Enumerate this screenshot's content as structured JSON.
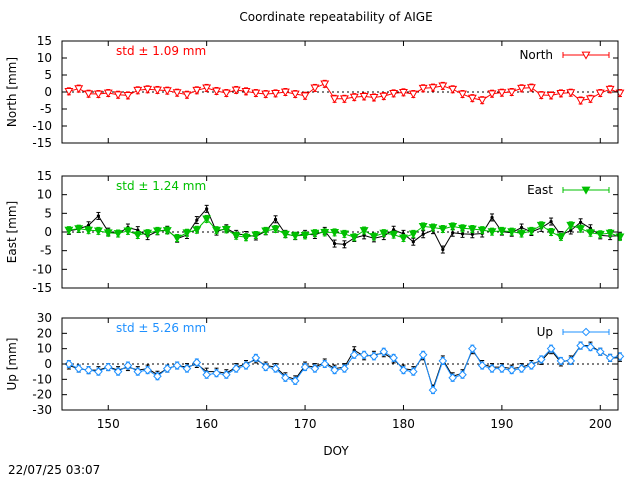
{
  "figure": {
    "title": "Coordinate repeatability of AIGE",
    "xlabel": "DOY",
    "timestamp": "22/07/25 03:07",
    "xlim": [
      145.3,
      201.8
    ],
    "xticks": [
      "150",
      "160",
      "170",
      "180",
      "190",
      "200"
    ]
  },
  "chart_data": [
    {
      "type": "line",
      "panel": "north",
      "ylabel": "North [mm]",
      "ylim": [
        -15,
        15
      ],
      "yticks": [
        "15",
        "10",
        "5",
        "0",
        "-5",
        "-10",
        "-15"
      ],
      "std_label": "std ± 1.09 mm",
      "color": "#ff0000",
      "legend": {
        "label": "North",
        "position": "top-right",
        "marker": "open-triangle-down"
      },
      "grid": false,
      "zero_line": true,
      "series": [
        {
          "marker": "open-triangle-down",
          "color": "#ff0000",
          "x": [
            146,
            147,
            148,
            149,
            150,
            151,
            152,
            153,
            154,
            155,
            156,
            157,
            158,
            159,
            160,
            161,
            162,
            163,
            164,
            165,
            166,
            167,
            168,
            169,
            170,
            171,
            172,
            173,
            174,
            175,
            176,
            177,
            178,
            179,
            180,
            181,
            182,
            183,
            184,
            185,
            186,
            187,
            188,
            189,
            190,
            191,
            192,
            193,
            194,
            195,
            196,
            197,
            198,
            199,
            200,
            201,
            202
          ],
          "y": [
            0.2,
            1.0,
            -0.5,
            -0.6,
            -0.3,
            -0.8,
            -1.0,
            0.5,
            0.8,
            0.6,
            0.4,
            -0.2,
            -0.8,
            0.5,
            1.2,
            0.3,
            -0.3,
            0.6,
            0.2,
            -0.3,
            -0.6,
            -0.4,
            0.0,
            -0.6,
            -1.1,
            1.2,
            2.4,
            -2.0,
            -2.0,
            -1.5,
            -1.3,
            -1.6,
            -1.2,
            -0.4,
            -0.1,
            -0.6,
            1.1,
            1.3,
            1.8,
            0.8,
            -0.6,
            -1.8,
            -2.4,
            -0.5,
            -0.2,
            0.0,
            1.1,
            1.3,
            -0.9,
            -1.0,
            -0.4,
            -0.2,
            -2.5,
            -2.0,
            -0.3,
            0.8,
            -0.3
          ]
        }
      ]
    },
    {
      "type": "line",
      "panel": "east",
      "ylabel": "East [mm]",
      "ylim": [
        -15,
        15
      ],
      "yticks": [
        "15",
        "10",
        "5",
        "0",
        "-5",
        "-10",
        "-15"
      ],
      "std_label": "std ± 1.24 mm",
      "color": "#00c000",
      "legend": {
        "label": "East",
        "position": "top-right",
        "marker": "filled-triangle-down"
      },
      "grid": false,
      "zero_line": true,
      "series": [
        {
          "marker": "dot",
          "color": "#000000",
          "x": [
            146,
            147,
            148,
            149,
            150,
            151,
            152,
            153,
            154,
            155,
            156,
            157,
            158,
            159,
            160,
            161,
            162,
            163,
            164,
            165,
            166,
            167,
            168,
            169,
            170,
            171,
            172,
            173,
            174,
            175,
            176,
            177,
            178,
            179,
            180,
            181,
            182,
            183,
            184,
            185,
            186,
            187,
            188,
            189,
            190,
            191,
            192,
            193,
            194,
            195,
            196,
            197,
            198,
            199,
            200,
            201,
            202
          ],
          "y": [
            0.3,
            0.8,
            1.8,
            4.3,
            0.1,
            -0.4,
            1.2,
            0.5,
            -1.1,
            0.2,
            0.6,
            -1.8,
            -0.8,
            3.2,
            6.2,
            0.1,
            1.0,
            -0.5,
            -0.8,
            -1.2,
            0.2,
            3.4,
            -0.5,
            -1.1,
            -0.5,
            -0.8,
            0.3,
            -3.1,
            -3.3,
            -1.6,
            -0.9,
            -1.7,
            -1.1,
            0.6,
            -0.5,
            -2.6,
            -0.6,
            0.5,
            -4.7,
            -0.2,
            -0.5,
            -0.6,
            -0.4,
            3.9,
            0.1,
            -0.2,
            1.2,
            0.0,
            1.1,
            2.8,
            -0.8,
            0.4,
            2.6,
            1.0,
            -0.9,
            -1.1,
            -1.0
          ]
        },
        {
          "marker": "filled-triangle-down",
          "color": "#00c000",
          "x": [
            146,
            147,
            148,
            149,
            150,
            151,
            152,
            153,
            154,
            155,
            156,
            157,
            158,
            159,
            160,
            161,
            162,
            163,
            164,
            165,
            166,
            167,
            168,
            169,
            170,
            171,
            172,
            173,
            174,
            175,
            176,
            177,
            178,
            179,
            180,
            181,
            182,
            183,
            184,
            185,
            186,
            187,
            188,
            189,
            190,
            191,
            192,
            193,
            194,
            195,
            196,
            197,
            198,
            199,
            200,
            201,
            202
          ],
          "y": [
            0.5,
            0.9,
            0.5,
            0.3,
            -0.2,
            -0.4,
            0.3,
            -0.8,
            -0.3,
            0.3,
            0.4,
            -1.6,
            -0.2,
            0.6,
            3.5,
            0.5,
            0.7,
            -1.0,
            -1.4,
            -0.8,
            0.3,
            0.8,
            -0.6,
            -1.0,
            -0.9,
            -0.3,
            -0.1,
            -0.1,
            -0.5,
            -1.4,
            0.4,
            -1.2,
            -0.3,
            -0.7,
            -1.6,
            -0.5,
            1.5,
            1.2,
            0.8,
            1.5,
            1.0,
            0.8,
            0.5,
            0.1,
            0.3,
            0.1,
            -0.4,
            0.3,
            1.8,
            0.0,
            -1.3,
            1.8,
            0.9,
            -0.2,
            -0.6,
            -0.3,
            -1.3
          ]
        }
      ]
    },
    {
      "type": "line",
      "panel": "up",
      "ylabel": "Up [mm]",
      "ylim": [
        -30,
        30
      ],
      "yticks": [
        "30",
        "20",
        "10",
        "0",
        "-10",
        "-20",
        "-30"
      ],
      "std_label": "std ± 5.26 mm",
      "color": "#1e90ff",
      "legend": {
        "label": "Up",
        "position": "top-right",
        "marker": "open-diamond"
      },
      "grid": false,
      "zero_line": true,
      "series": [
        {
          "marker": "dot",
          "color": "#000000",
          "x": [
            146,
            147,
            148,
            149,
            150,
            151,
            152,
            153,
            154,
            155,
            156,
            157,
            158,
            159,
            160,
            161,
            162,
            163,
            164,
            165,
            166,
            167,
            168,
            169,
            170,
            171,
            172,
            173,
            174,
            175,
            176,
            177,
            178,
            179,
            180,
            181,
            182,
            183,
            184,
            185,
            186,
            187,
            188,
            189,
            190,
            191,
            192,
            193,
            194,
            195,
            196,
            197,
            198,
            199,
            200,
            201,
            202
          ],
          "y": [
            -1,
            -3,
            -4,
            -4,
            -2,
            -4,
            -2,
            -4,
            -3,
            -7,
            -3,
            -1,
            -2,
            0,
            -5,
            -5,
            -6,
            -2,
            0,
            3,
            -1,
            -2,
            -8,
            -10,
            -1,
            -2,
            1,
            -3,
            -2,
            9,
            5,
            6,
            7,
            3,
            -3,
            -4,
            5,
            -16,
            3,
            -8,
            -6,
            9,
            0,
            -2,
            -2,
            -3,
            -2,
            0,
            2,
            9,
            1,
            3,
            12,
            12,
            8,
            4,
            4
          ]
        },
        {
          "marker": "open-diamond",
          "color": "#1e90ff",
          "x": [
            146,
            147,
            148,
            149,
            150,
            151,
            152,
            153,
            154,
            155,
            156,
            157,
            158,
            159,
            160,
            161,
            162,
            163,
            164,
            165,
            166,
            167,
            168,
            169,
            170,
            171,
            172,
            173,
            174,
            175,
            176,
            177,
            178,
            179,
            180,
            181,
            182,
            183,
            184,
            185,
            186,
            187,
            188,
            189,
            190,
            191,
            192,
            193,
            194,
            195,
            196,
            197,
            198,
            199,
            200,
            201,
            202
          ],
          "y": [
            0,
            -3,
            -4,
            -5,
            -2,
            -5,
            -1,
            -5,
            -4,
            -8,
            -3,
            -1,
            -3,
            1,
            -7,
            -6,
            -7,
            -3,
            -1,
            4,
            -2,
            -3,
            -9,
            -11,
            -2,
            -3,
            0,
            -4,
            -3,
            6,
            6,
            5,
            8,
            4,
            -4,
            -5,
            6,
            -17,
            2,
            -9,
            -7,
            10,
            -1,
            -3,
            -3,
            -4,
            -3,
            -1,
            3,
            10,
            2,
            2,
            12,
            11,
            8,
            4,
            5
          ]
        }
      ]
    }
  ]
}
